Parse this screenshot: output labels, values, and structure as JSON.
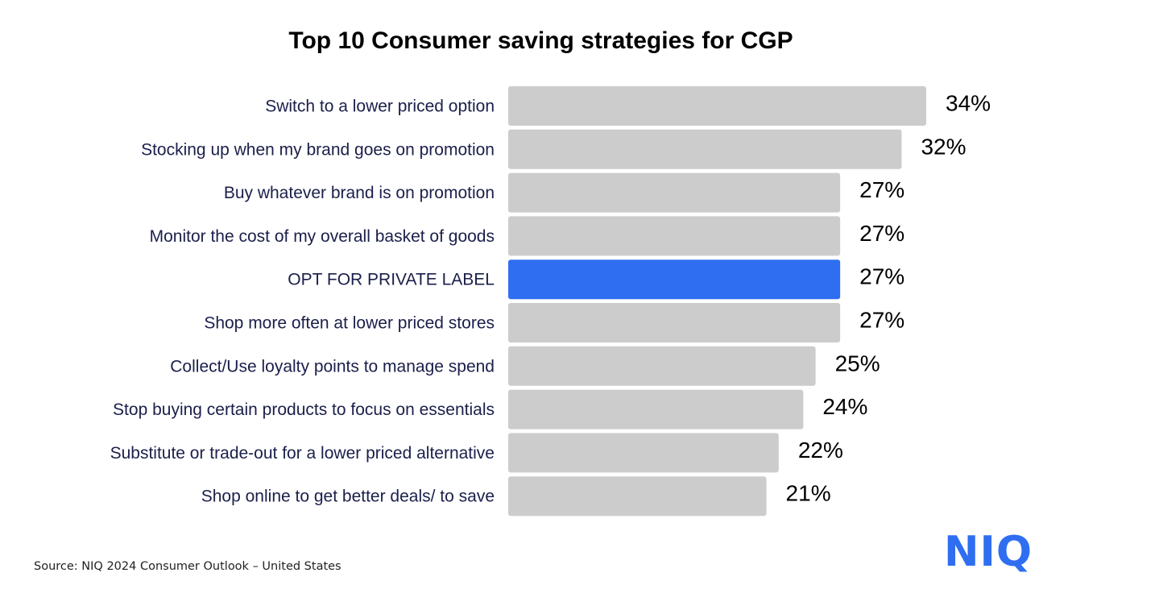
{
  "chart_data": {
    "type": "bar",
    "orientation": "horizontal",
    "title": "Top 10 Consumer saving strategies for CGP",
    "xlabel": "",
    "ylabel": "",
    "unit": "%",
    "grid": false,
    "xlim": [
      0,
      34
    ],
    "categories": [
      "Switch to a lower priced option",
      "Stocking up when my brand goes on promotion",
      "Buy whatever brand is on promotion",
      "Monitor the cost of my overall basket of goods",
      "OPT FOR PRIVATE LABEL",
      "Shop more often at lower priced stores",
      "Collect/Use loyalty points to manage spend",
      "Stop buying certain products to focus on essentials",
      "Substitute or trade-out for a lower priced alternative",
      "Shop online to get better deals/ to save"
    ],
    "values": [
      34,
      32,
      27,
      27,
      27,
      27,
      25,
      24,
      22,
      21
    ],
    "value_labels": [
      "34%",
      "32%",
      "27%",
      "27%",
      "27%",
      "27%",
      "25%",
      "24%",
      "22%",
      "21%"
    ],
    "highlighted_index": 4,
    "colors": {
      "bar": "#cccccc",
      "highlight": "#2f6ef0",
      "category_text": "#1b1f4a",
      "value_text": "#000000"
    }
  },
  "footer": {
    "source": "Source: NIQ 2024 Consumer Outlook – United States",
    "logo": "NIQ"
  }
}
